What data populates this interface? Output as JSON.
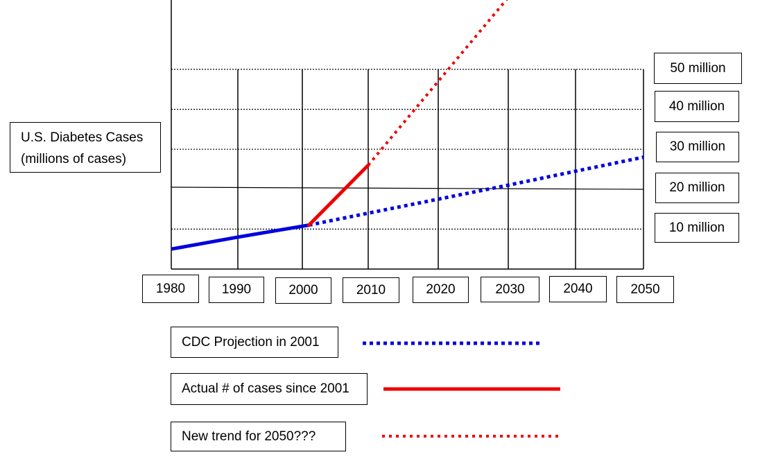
{
  "chart_data": {
    "type": "line",
    "ylabel": "U.S. Diabetes Cases (millions of cases)",
    "ylabel_lines": [
      "U.S. Diabetes Cases",
      "(millions of cases)"
    ],
    "x_ticks": [
      "1980",
      "1990",
      "2000",
      "2010",
      "2020",
      "2030",
      "2040",
      "2050"
    ],
    "y_ticks": [
      "10 million",
      "20 million",
      "30 million",
      "40 million",
      "50 million"
    ],
    "xlim": [
      1980,
      2050
    ],
    "ylim": [
      0,
      50
    ],
    "grid": true,
    "legend_placement": "bottom",
    "series": [
      {
        "name": "CDC Projection in 2001",
        "style": "dotted",
        "color": "#0000dd",
        "points": [
          [
            1980,
            5
          ],
          [
            1990,
            8
          ],
          [
            2001,
            11
          ],
          [
            2010,
            14
          ],
          [
            2020,
            17.5
          ],
          [
            2030,
            21
          ],
          [
            2040,
            24.5
          ],
          [
            2050,
            28
          ]
        ]
      },
      {
        "name": "Actual # of cases since 2001",
        "style": "solid",
        "color": "#ee0000",
        "points": [
          [
            2001,
            11
          ],
          [
            2010,
            26
          ]
        ]
      },
      {
        "name": "New trend for 2050???",
        "style": "dotted",
        "color": "#ee0000",
        "points": [
          [
            2010,
            26
          ],
          [
            2020,
            47
          ],
          [
            2030,
            68
          ]
        ]
      }
    ]
  }
}
